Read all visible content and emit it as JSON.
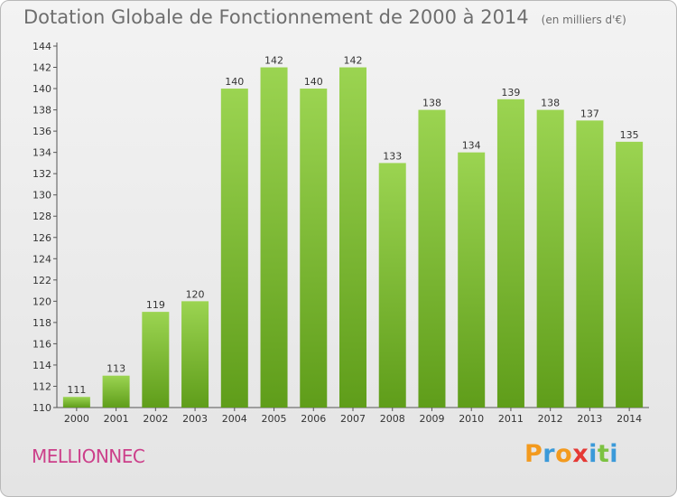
{
  "chart_data": {
    "type": "bar",
    "title": "Dotation Globale de Fonctionnement de 2000 à 2014",
    "unit": "(en milliers d'€)",
    "xlabel": "",
    "ylabel": "",
    "categories": [
      "2000",
      "2001",
      "2002",
      "2003",
      "2004",
      "2005",
      "2006",
      "2007",
      "2008",
      "2009",
      "2010",
      "2011",
      "2012",
      "2013",
      "2014"
    ],
    "values": [
      111,
      113,
      119,
      120,
      140,
      142,
      140,
      142,
      133,
      138,
      134,
      139,
      138,
      137,
      135
    ],
    "ylim": [
      110,
      144
    ],
    "yticks": [
      110,
      112,
      114,
      116,
      118,
      120,
      122,
      124,
      126,
      128,
      130,
      132,
      134,
      136,
      138,
      140,
      142,
      144
    ],
    "grid": false,
    "legend": "none",
    "bar_color_top": "#9bd451",
    "bar_color_bottom": "#5f9d1a"
  },
  "commune_name": "MELLIONNEC",
  "logo": {
    "letters": [
      "P",
      "r",
      "o",
      "x",
      "i",
      "t",
      "i"
    ],
    "colors": [
      "#f39a1e",
      "#3b9ad9",
      "#f39a1e",
      "#e53935",
      "#3b9ad9",
      "#7cc242",
      "#3b9ad9"
    ]
  }
}
